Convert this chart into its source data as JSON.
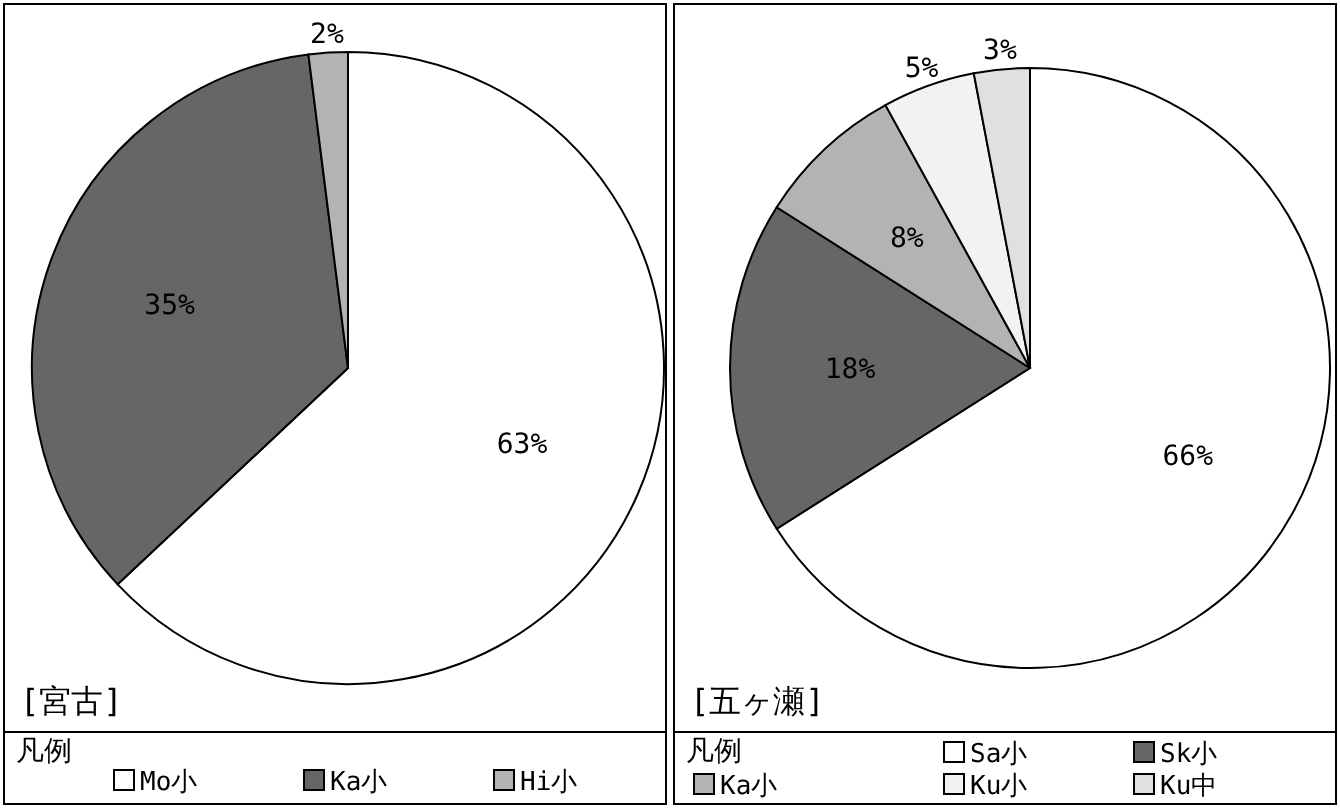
{
  "chart_data": [
    {
      "type": "pie",
      "title": "[宮古]",
      "legend_title": "凡例",
      "legend": "bottom",
      "categories": [
        "Mo小",
        "Ka小",
        "Hi小"
      ],
      "values": [
        63,
        35,
        2
      ],
      "value_labels": [
        "63%",
        "35%",
        "2%"
      ],
      "colors": [
        "#ffffff",
        "#666666",
        "#b3b3b3"
      ]
    },
    {
      "type": "pie",
      "title": "[五ヶ瀬]",
      "legend_title": "凡例",
      "legend": "bottom",
      "categories": [
        "Sa小",
        "Sk小",
        "Ka小",
        "Ku小",
        "Ku中"
      ],
      "values": [
        66,
        18,
        8,
        5,
        3
      ],
      "value_labels": [
        "66%",
        "18%",
        "8%",
        "5%",
        "3%"
      ],
      "colors": [
        "#ffffff",
        "#666666",
        "#b3b3b3",
        "#f2f2f2",
        "#e0e0e0"
      ]
    }
  ]
}
